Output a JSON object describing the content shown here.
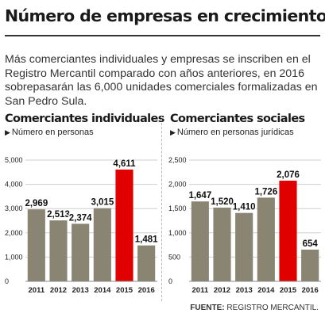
{
  "header": {
    "title": "Número de empresas en crecimiento",
    "intro": "Más comerciantes individuales y empresas se inscriben en el Registro Mercantil comparado con años anteriores, en 2016 sobrepasarán las 6,000 unidades comerciales formalizadas en San Pedro Sula."
  },
  "footer": {
    "source_label": "FUENTE:",
    "source_text": "REGISTRO MERCANTIL."
  },
  "colors": {
    "bar": "#8a8472",
    "highlight": "#e00000",
    "grid": "#cfcfcf"
  },
  "chart_data": [
    {
      "type": "bar",
      "title": "Comerciantes individuales",
      "subtitle": "Número en personas",
      "categories": [
        "2011",
        "2012",
        "2013",
        "2014",
        "2015",
        "2016"
      ],
      "values": [
        2969,
        2513,
        2374,
        3015,
        4611,
        1481
      ],
      "value_labels": [
        "2,969",
        "2,513",
        "2,374",
        "3,015",
        "4,611",
        "1,481"
      ],
      "y_ticks": [
        0,
        1000,
        2000,
        3000,
        4000,
        5000
      ],
      "y_tick_labels": [
        "0",
        "1,000",
        "2,000",
        "3,000",
        "4,000",
        "5,000"
      ],
      "ylim": [
        0,
        5000
      ],
      "highlight_index": 4,
      "grid": true
    },
    {
      "type": "bar",
      "title": "Comerciantes sociales",
      "subtitle": "Número en personas jurídicas",
      "categories": [
        "2011",
        "2012",
        "2013",
        "2014",
        "2015",
        "2016"
      ],
      "values": [
        1647,
        1520,
        1410,
        1726,
        2076,
        654
      ],
      "value_labels": [
        "1,647",
        "1,520",
        "1,410",
        "1,726",
        "2,076",
        "654"
      ],
      "y_ticks": [
        0,
        500,
        1000,
        1500,
        2000,
        2500
      ],
      "y_tick_labels": [
        "0",
        "500",
        "1,000",
        "1,500",
        "2,000",
        "2,500"
      ],
      "ylim": [
        0,
        2500
      ],
      "highlight_index": 4,
      "grid": true
    }
  ]
}
